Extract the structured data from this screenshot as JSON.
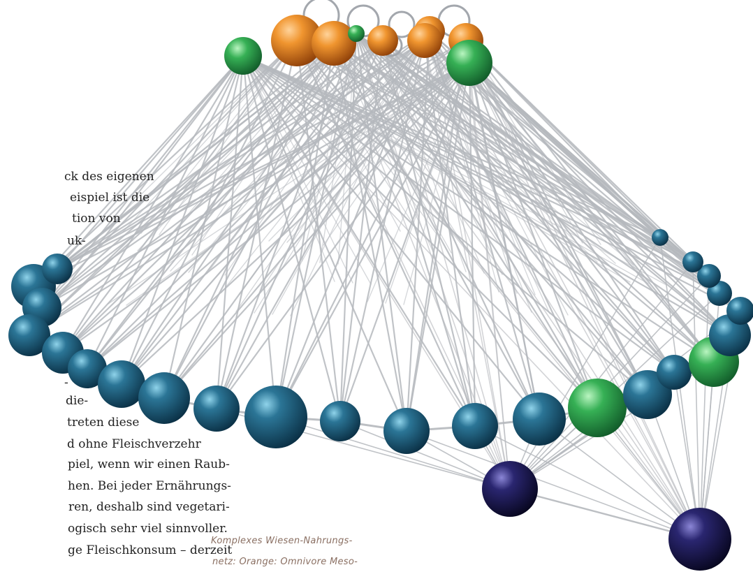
{
  "body_text": [
    "ck des eigenen",
    "eispiel ist die",
    "tion von",
    "uk-",
    "-",
    "die-",
    "treten diese",
    "d ohne Fleischverzehr",
    "piel, wenn wir einen Raub-",
    "hen. Bei jeder Ernährungs-",
    "ren, deshalb sind vegetari-",
    "ogisch sehr viel sinnvoller.",
    "ge Fleischkonsum – derzeit"
  ],
  "caption": [
    "Komplexes Wiesen-Nahrungs-",
    "netz: Orange: Omnivore Meso-"
  ],
  "node_colors": {
    "orange": "#d8761e",
    "green": "#2f9a4c",
    "teal": "#1b5a78",
    "navy": "#17144a",
    "link": "#b5b8bd"
  }
}
